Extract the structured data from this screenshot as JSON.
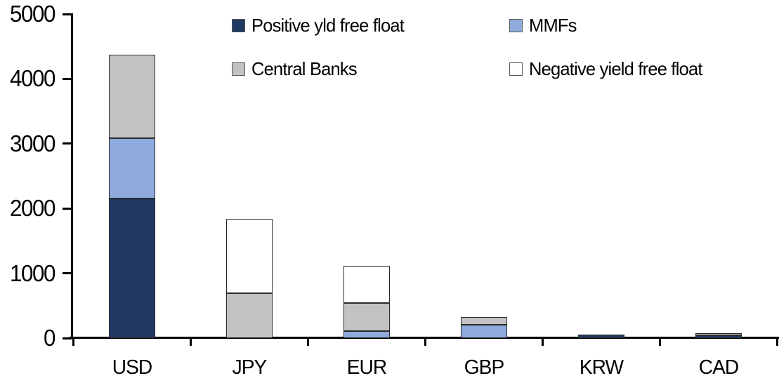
{
  "chart_data": {
    "type": "bar",
    "stacked": true,
    "title": "",
    "xlabel": "",
    "ylabel": "",
    "categories": [
      "USD",
      "JPY",
      "EUR",
      "GBP",
      "KRW",
      "CAD"
    ],
    "series": [
      {
        "name": "Positive yld free float",
        "color": "#1F3864",
        "values": [
          2150,
          0,
          0,
          0,
          50,
          40
        ]
      },
      {
        "name": "MMFs",
        "color": "#8FAADC",
        "values": [
          930,
          0,
          110,
          210,
          0,
          0
        ]
      },
      {
        "name": "Central Banks",
        "color": "#C2C2C2",
        "values": [
          1290,
          690,
          430,
          115,
          0,
          40
        ]
      },
      {
        "name": "Negative yield free float",
        "color": "#FFFFFF",
        "values": [
          0,
          1150,
          570,
          0,
          0,
          0
        ]
      }
    ],
    "totals": {
      "USD": 4370,
      "JPY": 1840,
      "EUR": 1110,
      "GBP": 325,
      "KRW": 50,
      "CAD": 80
    },
    "ylim": [
      0,
      5000
    ],
    "yticks": [
      0,
      1000,
      2000,
      3000,
      4000,
      5000
    ],
    "grid": false,
    "legend_position": "top",
    "axis_color": "#000000",
    "bar_border_color": "#2b2b2b"
  }
}
